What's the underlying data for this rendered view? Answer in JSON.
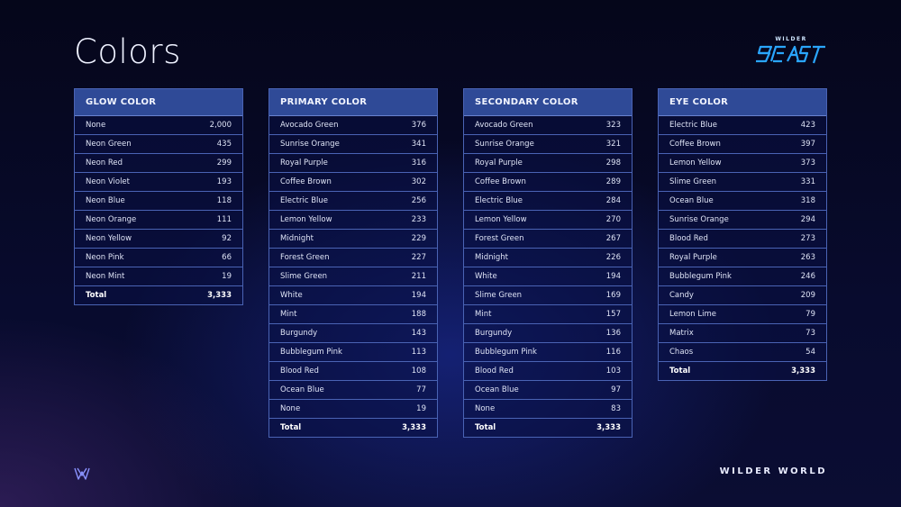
{
  "page": {
    "title": "Colors"
  },
  "logo": {
    "small_text": "WILDER",
    "main_text": "BEAST",
    "color": "#2aa6ff"
  },
  "footer": {
    "brand": "WILDER WORLD",
    "mark_icon": "wilder-w-icon"
  },
  "tables": [
    {
      "header": "GLOW COLOR",
      "rows": [
        {
          "label": "None",
          "value": "2,000"
        },
        {
          "label": "Neon Green",
          "value": "435"
        },
        {
          "label": "Neon Red",
          "value": "299"
        },
        {
          "label": "Neon Violet",
          "value": "193"
        },
        {
          "label": "Neon Blue",
          "value": "118"
        },
        {
          "label": "Neon Orange",
          "value": "111"
        },
        {
          "label": "Neon Yellow",
          "value": "92"
        },
        {
          "label": "Neon Pink",
          "value": "66"
        },
        {
          "label": "Neon Mint",
          "value": "19"
        }
      ],
      "total": {
        "label": "Total",
        "value": "3,333"
      }
    },
    {
      "header": "PRIMARY COLOR",
      "rows": [
        {
          "label": "Avocado Green",
          "value": "376"
        },
        {
          "label": "Sunrise Orange",
          "value": "341"
        },
        {
          "label": "Royal Purple",
          "value": "316"
        },
        {
          "label": "Coffee Brown",
          "value": "302"
        },
        {
          "label": "Electric Blue",
          "value": "256"
        },
        {
          "label": "Lemon Yellow",
          "value": "233"
        },
        {
          "label": "Midnight",
          "value": "229"
        },
        {
          "label": "Forest Green",
          "value": "227"
        },
        {
          "label": "Slime Green",
          "value": "211"
        },
        {
          "label": "White",
          "value": "194"
        },
        {
          "label": "Mint",
          "value": "188"
        },
        {
          "label": "Burgundy",
          "value": "143"
        },
        {
          "label": "Bubblegum Pink",
          "value": "113"
        },
        {
          "label": "Blood Red",
          "value": "108"
        },
        {
          "label": "Ocean Blue",
          "value": "77"
        },
        {
          "label": "None",
          "value": "19"
        }
      ],
      "total": {
        "label": "Total",
        "value": "3,333"
      }
    },
    {
      "header": "SECONDARY COLOR",
      "rows": [
        {
          "label": "Avocado Green",
          "value": "323"
        },
        {
          "label": "Sunrise Orange",
          "value": "321"
        },
        {
          "label": "Royal Purple",
          "value": "298"
        },
        {
          "label": "Coffee Brown",
          "value": "289"
        },
        {
          "label": "Electric Blue",
          "value": "284"
        },
        {
          "label": "Lemon Yellow",
          "value": "270"
        },
        {
          "label": "Forest Green",
          "value": "267"
        },
        {
          "label": "Midnight",
          "value": "226"
        },
        {
          "label": "White",
          "value": "194"
        },
        {
          "label": "Slime Green",
          "value": "169"
        },
        {
          "label": "Mint",
          "value": "157"
        },
        {
          "label": "Burgundy",
          "value": "136"
        },
        {
          "label": "Bubblegum Pink",
          "value": "116"
        },
        {
          "label": "Blood Red",
          "value": "103"
        },
        {
          "label": "Ocean Blue",
          "value": "97"
        },
        {
          "label": "None",
          "value": "83"
        }
      ],
      "total": {
        "label": "Total",
        "value": "3,333"
      }
    },
    {
      "header": "EYE COLOR",
      "rows": [
        {
          "label": "Electric Blue",
          "value": "423"
        },
        {
          "label": "Coffee Brown",
          "value": "397"
        },
        {
          "label": "Lemon Yellow",
          "value": "373"
        },
        {
          "label": "Slime Green",
          "value": "331"
        },
        {
          "label": "Ocean Blue",
          "value": "318"
        },
        {
          "label": "Sunrise Orange",
          "value": "294"
        },
        {
          "label": "Blood Red",
          "value": "273"
        },
        {
          "label": "Royal Purple",
          "value": "263"
        },
        {
          "label": "Bubblegum Pink",
          "value": "246"
        },
        {
          "label": "Candy",
          "value": "209"
        },
        {
          "label": "Lemon Lime",
          "value": "79"
        },
        {
          "label": "Matrix",
          "value": "73"
        },
        {
          "label": "Chaos",
          "value": "54"
        }
      ],
      "total": {
        "label": "Total",
        "value": "3,333"
      }
    }
  ]
}
